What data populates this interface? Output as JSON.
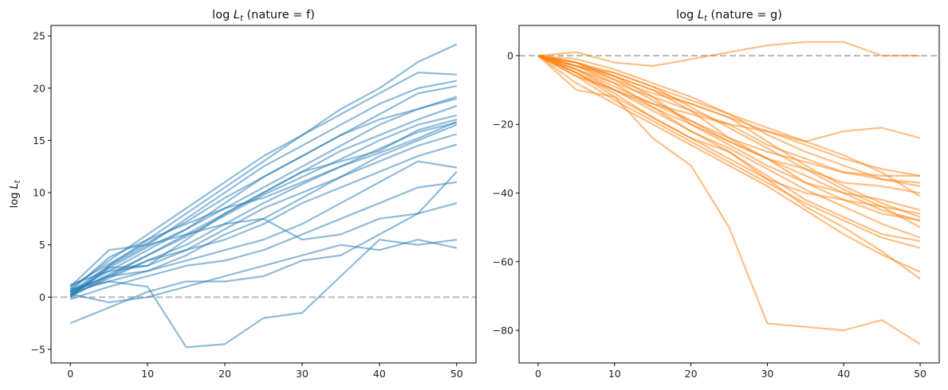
{
  "chart_data": [
    {
      "type": "line",
      "title": "log L_t (nature = f)",
      "title_parts": {
        "main": "log ",
        "var": "L",
        "sub": "t",
        "rest": " (nature = f)"
      },
      "ylabel": "log L_t",
      "ylabel_parts": {
        "main": "log ",
        "var": "L",
        "sub": "t"
      },
      "xlim": [
        -2.5,
        52.5
      ],
      "ylim": [
        -6.3,
        26.0
      ],
      "xticks": [
        0,
        10,
        20,
        30,
        40,
        50
      ],
      "yticks": [
        -5,
        0,
        5,
        10,
        15,
        20,
        25
      ],
      "color": "#1f77b4",
      "reference_line": {
        "y": 0,
        "color": "#bdbdbd",
        "style": "dashed"
      },
      "series": [
        {
          "x": [
            0,
            5,
            10,
            15,
            20,
            25,
            30,
            35,
            40,
            45,
            50
          ],
          "values": [
            0.5,
            3.0,
            5.5,
            8.0,
            10.5,
            13.0,
            15.5,
            18.0,
            20.0,
            22.5,
            24.2
          ]
        },
        {
          "x": [
            0,
            5,
            10,
            15,
            20,
            25,
            30,
            35,
            40,
            45,
            50
          ],
          "values": [
            0.8,
            3.5,
            6.0,
            8.5,
            11.0,
            13.5,
            15.5,
            17.5,
            19.5,
            21.5,
            21.3
          ]
        },
        {
          "x": [
            0,
            5,
            10,
            15,
            20,
            25,
            30,
            35,
            40,
            45,
            50
          ],
          "values": [
            0.2,
            3.0,
            5.0,
            7.5,
            10.0,
            12.5,
            14.5,
            16.5,
            18.5,
            20.0,
            20.7
          ]
        },
        {
          "x": [
            0,
            5,
            10,
            15,
            20,
            25,
            30,
            35,
            40,
            45,
            50
          ],
          "values": [
            1.0,
            3.2,
            5.2,
            7.2,
            9.5,
            11.5,
            13.5,
            15.5,
            17.5,
            19.5,
            20.2
          ]
        },
        {
          "x": [
            0,
            5,
            10,
            15,
            20,
            25,
            30,
            35,
            40,
            45,
            50
          ],
          "values": [
            0.5,
            2.5,
            4.5,
            6.5,
            8.5,
            10.5,
            12.5,
            14.5,
            16.5,
            18.0,
            19.2
          ]
        },
        {
          "x": [
            0,
            5,
            10,
            15,
            20,
            25,
            30,
            35,
            40,
            45,
            50
          ],
          "values": [
            0.0,
            2.0,
            4.0,
            6.0,
            8.0,
            10.0,
            12.0,
            14.0,
            15.5,
            17.0,
            18.3
          ]
        },
        {
          "x": [
            0,
            5,
            10,
            15,
            20,
            25,
            30,
            35,
            40,
            45,
            50
          ],
          "values": [
            0.3,
            2.2,
            4.0,
            5.8,
            7.8,
            9.8,
            11.5,
            13.2,
            15.0,
            16.5,
            17.4
          ]
        },
        {
          "x": [
            0,
            5,
            10,
            15,
            20,
            25,
            30,
            35,
            40,
            45,
            50
          ],
          "values": [
            0.6,
            2.0,
            3.5,
            5.0,
            7.0,
            9.0,
            10.8,
            12.5,
            14.2,
            15.8,
            16.7
          ]
        },
        {
          "x": [
            0,
            5,
            10,
            15,
            20,
            25,
            30,
            35,
            40,
            45,
            50
          ],
          "values": [
            1.2,
            2.5,
            3.0,
            4.5,
            6.5,
            8.5,
            10.0,
            11.5,
            13.5,
            15.0,
            16.5
          ]
        },
        {
          "x": [
            0,
            5,
            10,
            15,
            20,
            25,
            30,
            35,
            40,
            45,
            50
          ],
          "values": [
            0.4,
            1.5,
            2.5,
            4.0,
            6.0,
            7.5,
            9.5,
            11.5,
            13.0,
            14.5,
            15.6
          ]
        },
        {
          "x": [
            0,
            5,
            10,
            15,
            20,
            25,
            30,
            35,
            40,
            45,
            50
          ],
          "values": [
            0.2,
            1.8,
            3.5,
            4.5,
            5.5,
            7.0,
            9.0,
            10.5,
            12.0,
            13.5,
            14.6
          ]
        },
        {
          "x": [
            0,
            5,
            10,
            15,
            20,
            25,
            30,
            35,
            40,
            45,
            50
          ],
          "values": [
            0.5,
            2.0,
            2.5,
            3.5,
            4.5,
            5.5,
            7.0,
            9.0,
            11.0,
            13.0,
            12.4
          ]
        },
        {
          "x": [
            0,
            5,
            10,
            15,
            20,
            25,
            30,
            35,
            40,
            45,
            50
          ],
          "values": [
            -0.2,
            1.0,
            2.0,
            3.0,
            3.5,
            4.5,
            6.0,
            7.5,
            9.0,
            10.5,
            11.0
          ]
        },
        {
          "x": [
            0,
            5,
            10,
            15,
            20,
            25,
            30,
            35,
            40,
            45,
            50
          ],
          "values": [
            -2.5,
            -1.0,
            0.5,
            1.5,
            1.5,
            2.0,
            3.5,
            4.0,
            6.0,
            8.0,
            9.0
          ]
        },
        {
          "x": [
            0,
            5,
            10,
            15,
            20,
            25,
            30,
            35,
            40,
            45,
            50
          ],
          "values": [
            1.0,
            4.5,
            5.0,
            6.0,
            7.0,
            7.5,
            5.5,
            6.0,
            7.5,
            8.0,
            12.0
          ]
        },
        {
          "x": [
            0,
            5,
            10,
            15,
            20,
            25,
            30,
            35,
            40,
            45,
            50
          ],
          "values": [
            0.3,
            -0.5,
            0.0,
            1.0,
            2.0,
            3.0,
            4.0,
            5.0,
            4.5,
            5.5,
            4.7
          ]
        },
        {
          "x": [
            0,
            5,
            10,
            15,
            20,
            25,
            30,
            35,
            40,
            45,
            50
          ],
          "values": [
            0.8,
            1.5,
            1.0,
            -4.8,
            -4.5,
            -2.0,
            -1.5,
            2.0,
            5.5,
            5.0,
            5.5
          ]
        },
        {
          "x": [
            0,
            5,
            10,
            15,
            20,
            25,
            30,
            35,
            40,
            45,
            50
          ],
          "values": [
            0.1,
            2.8,
            3.0,
            5.5,
            8.0,
            10.0,
            12.0,
            13.0,
            14.0,
            16.0,
            17.0
          ]
        },
        {
          "x": [
            0,
            5,
            10,
            15,
            20,
            25,
            30,
            35,
            40,
            45,
            50
          ],
          "values": [
            0.6,
            3.8,
            5.5,
            7.0,
            8.5,
            9.5,
            11.0,
            12.5,
            13.8,
            15.2,
            16.8
          ]
        },
        {
          "x": [
            0,
            5,
            10,
            15,
            20,
            25,
            30,
            35,
            40,
            45,
            50
          ],
          "values": [
            0.0,
            2.8,
            4.8,
            6.5,
            9.0,
            11.5,
            13.5,
            15.5,
            17.0,
            18.0,
            19.0
          ]
        }
      ]
    },
    {
      "type": "line",
      "title": "log L_t (nature = g)",
      "title_parts": {
        "main": "log ",
        "var": "L",
        "sub": "t",
        "rest": " (nature = g)"
      },
      "ylabel": "",
      "xlim": [
        -2.5,
        52.5
      ],
      "ylim": [
        -89.5,
        8.8
      ],
      "xticks": [
        0,
        10,
        20,
        30,
        40,
        50
      ],
      "yticks": [
        -80,
        -60,
        -40,
        -20,
        0
      ],
      "color": "#ff7f0e",
      "reference_line": {
        "y": 0,
        "color": "#bdbdbd",
        "style": "dashed"
      },
      "series": [
        {
          "x": [
            0,
            5,
            10,
            15,
            20,
            25,
            30,
            35,
            40,
            45,
            50
          ],
          "values": [
            0,
            1,
            -2,
            -3,
            -1,
            1,
            3,
            4,
            4,
            0,
            0
          ]
        },
        {
          "x": [
            0,
            5,
            10,
            15,
            20,
            25,
            30,
            35,
            40,
            45,
            50
          ],
          "values": [
            0,
            -5,
            -10,
            -14,
            -17,
            -20,
            -22,
            -25,
            -22,
            -21,
            -24
          ]
        },
        {
          "x": [
            0,
            5,
            10,
            15,
            20,
            25,
            30,
            35,
            40,
            45,
            50
          ],
          "values": [
            0,
            -4,
            -9,
            -14,
            -19,
            -24,
            -28,
            -31,
            -34,
            -35,
            -35
          ]
        },
        {
          "x": [
            0,
            5,
            10,
            15,
            20,
            25,
            30,
            35,
            40,
            45,
            50
          ],
          "values": [
            0,
            -3,
            -8,
            -15,
            -20,
            -25,
            -30,
            -33,
            -37,
            -38,
            -40
          ]
        },
        {
          "x": [
            0,
            5,
            10,
            15,
            20,
            25,
            30,
            35,
            40,
            45,
            50
          ],
          "values": [
            0,
            -2,
            -6,
            -12,
            -20,
            -26,
            -32,
            -37,
            -40,
            -42,
            -45
          ]
        },
        {
          "x": [
            0,
            5,
            10,
            15,
            20,
            25,
            30,
            35,
            40,
            45,
            50
          ],
          "values": [
            0,
            -3,
            -7,
            -13,
            -19,
            -25,
            -30,
            -37,
            -42,
            -46,
            -48
          ]
        },
        {
          "x": [
            0,
            5,
            10,
            15,
            20,
            25,
            30,
            35,
            40,
            45,
            50
          ],
          "values": [
            0,
            -4,
            -10,
            -15,
            -22,
            -27,
            -33,
            -39,
            -44,
            -49,
            -53
          ]
        },
        {
          "x": [
            0,
            5,
            10,
            15,
            20,
            25,
            30,
            35,
            40,
            45,
            50
          ],
          "values": [
            0,
            -5,
            -12,
            -18,
            -24,
            -28,
            -35,
            -42,
            -47,
            -52,
            -54
          ]
        },
        {
          "x": [
            0,
            5,
            10,
            15,
            20,
            25,
            30,
            35,
            40,
            45,
            50
          ],
          "values": [
            0,
            -8,
            -14,
            -20,
            -26,
            -32,
            -38,
            -45,
            -52,
            -58,
            -63
          ]
        },
        {
          "x": [
            0,
            5,
            10,
            15,
            20,
            25,
            30,
            35,
            40,
            45,
            50
          ],
          "values": [
            0,
            -6,
            -10,
            -16,
            -22,
            -28,
            -36,
            -44,
            -50,
            -57,
            -65
          ]
        },
        {
          "x": [
            0,
            5,
            10,
            15,
            20,
            25,
            30,
            35,
            40,
            45,
            50
          ],
          "values": [
            0,
            -10,
            -12,
            -24,
            -32,
            -50,
            -78,
            -79,
            -80,
            -77,
            -84
          ]
        },
        {
          "x": [
            0,
            5,
            10,
            15,
            20,
            25,
            30,
            35,
            40,
            45,
            50
          ],
          "values": [
            0,
            -3,
            -6,
            -10,
            -14,
            -18,
            -22,
            -26,
            -30,
            -33,
            -35
          ]
        },
        {
          "x": [
            0,
            5,
            10,
            15,
            20,
            25,
            30,
            35,
            40,
            45,
            50
          ],
          "values": [
            0,
            -2,
            -5,
            -9,
            -13,
            -17,
            -23,
            -28,
            -32,
            -36,
            -38
          ]
        },
        {
          "x": [
            0,
            5,
            10,
            15,
            20,
            25,
            30,
            35,
            40,
            45,
            50
          ],
          "values": [
            0,
            -1,
            -4,
            -8,
            -12,
            -17,
            -21,
            -25,
            -29,
            -34,
            -41
          ]
        },
        {
          "x": [
            0,
            5,
            10,
            15,
            20,
            25,
            30,
            35,
            40,
            45,
            50
          ],
          "values": [
            0,
            -2,
            -7,
            -11,
            -14,
            -18,
            -25,
            -32,
            -38,
            -43,
            -47
          ]
        },
        {
          "x": [
            0,
            5,
            10,
            15,
            20,
            25,
            30,
            35,
            40,
            45,
            50
          ],
          "values": [
            0,
            -5,
            -11,
            -18,
            -24,
            -30,
            -36,
            -40,
            -42,
            -44,
            -46
          ]
        },
        {
          "x": [
            0,
            5,
            10,
            15,
            20,
            25,
            30,
            35,
            40,
            45,
            50
          ],
          "values": [
            0,
            -4,
            -8,
            -12,
            -16,
            -20,
            -26,
            -30,
            -34,
            -36,
            -37
          ]
        },
        {
          "x": [
            0,
            5,
            10,
            15,
            20,
            25,
            30,
            35,
            40,
            45,
            50
          ],
          "values": [
            0,
            -3,
            -5,
            -9,
            -15,
            -21,
            -27,
            -33,
            -39,
            -44,
            -50
          ]
        },
        {
          "x": [
            0,
            5,
            10,
            15,
            20,
            25,
            30,
            35,
            40,
            45,
            50
          ],
          "values": [
            0,
            -6,
            -13,
            -19,
            -25,
            -31,
            -37,
            -43,
            -48,
            -53,
            -56
          ]
        },
        {
          "x": [
            0,
            5,
            10,
            15,
            20,
            25,
            30,
            35,
            40,
            45,
            50
          ],
          "values": [
            0,
            -2,
            -6,
            -10,
            -16,
            -24,
            -30,
            -35,
            -40,
            -45,
            -48
          ]
        }
      ]
    }
  ]
}
